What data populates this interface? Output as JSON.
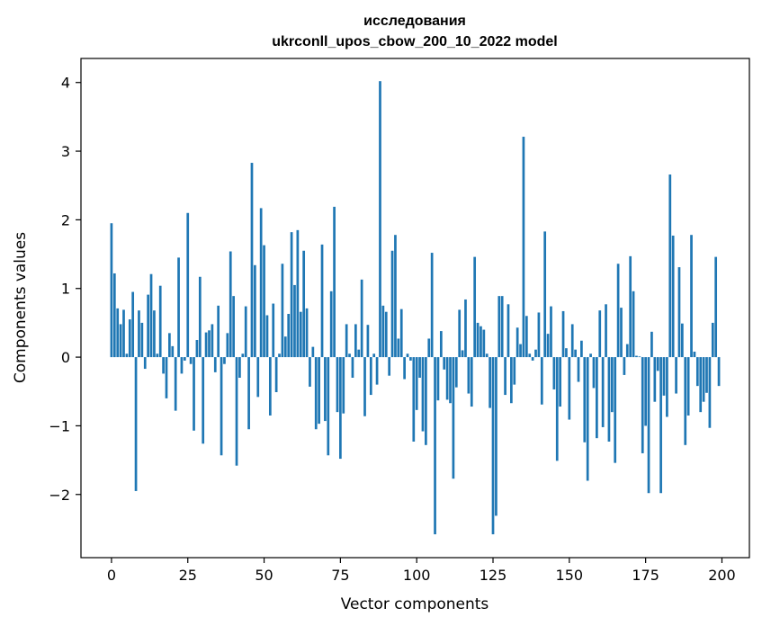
{
  "chart_data": {
    "type": "bar",
    "title_line1": "исследования",
    "title_line2": "ukrconll_upos_cbow_200_10_2022 model",
    "xlabel": "Vector components",
    "ylabel": "Components values",
    "xlim": [
      -10,
      209
    ],
    "ylim": [
      -2.92,
      4.35
    ],
    "x_ticks": [
      0,
      25,
      50,
      75,
      100,
      125,
      150,
      175,
      200
    ],
    "x_tick_labels": [
      "0",
      "25",
      "50",
      "75",
      "100",
      "125",
      "150",
      "175",
      "200"
    ],
    "y_ticks": [
      -2,
      -1,
      0,
      1,
      2,
      3,
      4
    ],
    "y_tick_labels": [
      "−2",
      "−1",
      "0",
      "1",
      "2",
      "3",
      "4"
    ],
    "bar_color": "#1f77b4",
    "grid": false,
    "values": [
      1.95,
      1.22,
      0.71,
      0.48,
      0.69,
      0.05,
      0.55,
      0.95,
      -1.95,
      0.68,
      0.5,
      -0.17,
      0.91,
      1.21,
      0.68,
      0.05,
      1.04,
      -0.24,
      -0.6,
      0.35,
      0.16,
      -0.78,
      1.45,
      -0.24,
      -0.05,
      2.1,
      -0.1,
      -1.07,
      0.25,
      1.17,
      -1.26,
      0.36,
      0.39,
      0.48,
      -0.22,
      0.75,
      -1.43,
      -0.1,
      0.35,
      1.54,
      0.89,
      -1.58,
      -0.3,
      0.05,
      0.74,
      -1.05,
      2.83,
      1.34,
      -0.58,
      2.17,
      1.63,
      0.61,
      -0.85,
      0.78,
      -0.51,
      0.05,
      1.36,
      0.3,
      0.63,
      1.82,
      1.05,
      1.85,
      0.66,
      1.55,
      0.71,
      -0.43,
      0.15,
      -1.05,
      -0.97,
      1.64,
      -0.93,
      -1.43,
      0.96,
      2.19,
      -0.8,
      -1.48,
      -0.82,
      0.48,
      0.05,
      -0.3,
      0.48,
      0.11,
      1.13,
      -0.86,
      0.47,
      -0.55,
      0.05,
      -0.4,
      4.02,
      0.75,
      0.66,
      -0.27,
      1.55,
      1.78,
      0.27,
      0.7,
      -0.32,
      0.05,
      -0.05,
      -1.23,
      -0.77,
      -0.3,
      -1.08,
      -1.28,
      0.27,
      1.52,
      -2.58,
      -0.63,
      0.38,
      -0.18,
      -0.62,
      -0.67,
      -1.77,
      -0.44,
      0.69,
      0.1,
      0.84,
      -0.53,
      -0.72,
      1.46,
      0.5,
      0.45,
      0.4,
      0.05,
      -0.74,
      -2.58,
      -2.31,
      0.89,
      0.89,
      -0.55,
      0.77,
      -0.67,
      -0.4,
      0.43,
      0.19,
      3.21,
      0.6,
      0.05,
      -0.05,
      0.11,
      0.65,
      -0.69,
      1.83,
      0.34,
      0.74,
      -0.47,
      -1.51,
      -0.72,
      0.67,
      0.13,
      -0.91,
      0.48,
      0.11,
      -0.36,
      0.24,
      -1.24,
      -1.8,
      0.05,
      -0.45,
      -1.18,
      0.68,
      -1.02,
      0.77,
      -1.23,
      -0.8,
      -1.54,
      1.36,
      0.72,
      -0.26,
      0.19,
      1.47,
      0.96,
      0.02,
      0.01,
      -1.4,
      -1.0,
      -1.98,
      0.37,
      -0.65,
      -0.2,
      -1.98,
      -0.56,
      -0.87,
      2.66,
      1.77,
      -0.53,
      1.31,
      0.49,
      -1.28,
      -0.85,
      1.78,
      0.08,
      -0.42,
      -0.8,
      -0.65,
      -0.52,
      -1.03,
      0.5,
      1.46,
      -0.42
    ]
  }
}
